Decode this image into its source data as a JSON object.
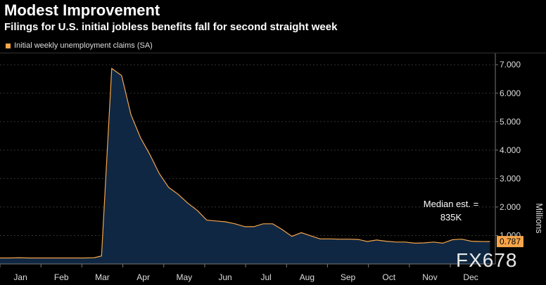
{
  "header": {
    "title": "Modest Improvement",
    "subtitle": "Filings for U.S. initial jobless benefits fall for second straight week"
  },
  "legend": {
    "label": "Initial weekly unemployment claims (SA)"
  },
  "watermark": "FX678",
  "colors": {
    "line": "#f5a54a",
    "fill": "#0f2742",
    "background": "#000000",
    "grid": "#333333",
    "label_box": "#f7a64b"
  },
  "chart_data": {
    "type": "area",
    "title": "Modest Improvement",
    "subtitle": "Filings for U.S. initial jobless benefits fall for second straight week",
    "ylabel": "Millions",
    "xlabel": "",
    "ylim": [
      0,
      7.4
    ],
    "y_ticks": [
      1,
      2,
      3,
      4,
      5,
      6,
      7
    ],
    "y_tick_labels": [
      "1.000",
      "2.000",
      "3.000",
      "4.000",
      "5.000",
      "6.000",
      "7.000"
    ],
    "x_range": [
      1,
      13.1
    ],
    "x_ticks": [
      {
        "label": "Jan",
        "x": 1.5
      },
      {
        "label": "Feb",
        "x": 2.5
      },
      {
        "label": "Mar",
        "x": 3.5
      },
      {
        "label": "Apr",
        "x": 4.5
      },
      {
        "label": "May",
        "x": 5.5
      },
      {
        "label": "Jun",
        "x": 6.5
      },
      {
        "label": "Jul",
        "x": 7.5
      },
      {
        "label": "Aug",
        "x": 8.5
      },
      {
        "label": "Sep",
        "x": 9.5
      },
      {
        "label": "Oct",
        "x": 10.5
      },
      {
        "label": "Nov",
        "x": 11.5
      },
      {
        "label": "Dec",
        "x": 12.5
      }
    ],
    "series": [
      {
        "name": "Initial weekly unemployment claims (SA)",
        "x": [
          1.0,
          1.23,
          1.46,
          1.69,
          1.92,
          2.15,
          2.38,
          2.61,
          2.84,
          3.07,
          3.3,
          3.48,
          3.73,
          3.97,
          4.2,
          4.43,
          4.66,
          4.89,
          5.12,
          5.35,
          5.59,
          5.82,
          6.05,
          6.28,
          6.51,
          6.74,
          6.98,
          7.2,
          7.43,
          7.66,
          7.89,
          8.13,
          8.36,
          8.59,
          8.82,
          9.05,
          9.28,
          9.51,
          9.75,
          9.97,
          10.2,
          10.43,
          10.67,
          10.9,
          11.13,
          11.36,
          11.59,
          11.82,
          12.05,
          12.28,
          12.51,
          12.74,
          12.97
        ],
        "values": [
          0.21,
          0.21,
          0.22,
          0.21,
          0.21,
          0.21,
          0.21,
          0.21,
          0.21,
          0.21,
          0.22,
          0.28,
          6.87,
          6.62,
          5.24,
          4.44,
          3.85,
          3.18,
          2.69,
          2.45,
          2.13,
          1.88,
          1.54,
          1.51,
          1.48,
          1.41,
          1.31,
          1.31,
          1.41,
          1.41,
          1.21,
          0.97,
          1.1,
          0.99,
          0.88,
          0.88,
          0.87,
          0.87,
          0.86,
          0.79,
          0.84,
          0.8,
          0.77,
          0.77,
          0.73,
          0.74,
          0.77,
          0.73,
          0.85,
          0.87,
          0.8,
          0.79,
          0.787
        ]
      }
    ],
    "last_value_label": "0.787",
    "annotations": [
      {
        "text_line1": "Median est. =",
        "text_line2": "835K"
      }
    ]
  }
}
